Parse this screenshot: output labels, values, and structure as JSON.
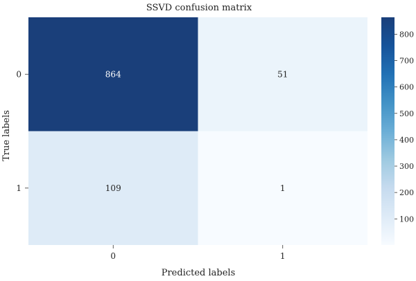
{
  "chart_data": {
    "type": "heatmap",
    "title": "SSVD confusion matrix",
    "xlabel": "Predicted labels",
    "ylabel": "True labels",
    "x_categories": [
      "0",
      "1"
    ],
    "y_categories": [
      "0",
      "1"
    ],
    "matrix": [
      [
        864,
        51
      ],
      [
        109,
        1
      ]
    ],
    "colormap": "Blues",
    "colorbar": {
      "range": [
        1,
        864
      ],
      "ticks": [
        100,
        200,
        300,
        400,
        500,
        600,
        700,
        800
      ]
    },
    "colors": {
      "low": "#f7fbff",
      "high": "#1a3f7a"
    }
  }
}
